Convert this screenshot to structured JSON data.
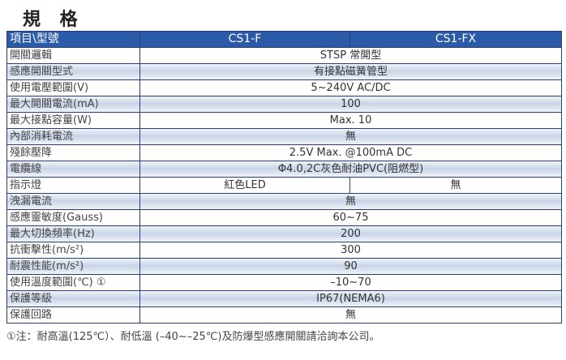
{
  "title": "規 格",
  "header": [
    "項目\\型號",
    "CS1-F",
    "CS1-FX"
  ],
  "rows": [
    {
      "label": "開關邏輯",
      "value": "STSP 常開型"
    },
    {
      "label": "感應開關型式",
      "value": "有接點磁簧管型"
    },
    {
      "label": "使用電壓範圍(V)",
      "value": "5~240V AC/DC"
    },
    {
      "label": "最大開關電流(mA)",
      "value": "100"
    },
    {
      "label": "最大接點容量(W)",
      "value": "Max. 10"
    },
    {
      "label": "內部消耗電流",
      "value": "無"
    },
    {
      "label": "殘餘壓降",
      "value": "2.5V Max. @100mA DC"
    },
    {
      "label": "電纜線",
      "value": "Φ4.0,2C灰色耐油PVC(阻燃型)"
    },
    {
      "label": "指示燈",
      "f": "紅色LED",
      "fx": "無"
    },
    {
      "label": "洩漏電流",
      "value": "無"
    },
    {
      "label": "感應靈敏度(Gauss)",
      "value": "60~75"
    },
    {
      "label": "最大切換頻率(Hz)",
      "value": "200"
    },
    {
      "label": "抗衝擊性(m/s²)",
      "value": "300"
    },
    {
      "label": "耐震性能(m/s²)",
      "value": "90"
    },
    {
      "label": "使用溫度範圍(℃) ①",
      "value": "–10~70"
    },
    {
      "label": "保護等級",
      "value": "IP67(NEMA6)"
    },
    {
      "label": "保護回路",
      "value": "無"
    }
  ],
  "footnote": "①注：耐高溫(125℃）、耐低溫 (–40~–25℃)及防爆型感應開關請洽詢本公司。",
  "colors": {
    "header": "#2a5aa8",
    "border": "#2a3d78",
    "shade": "#c8d4e8"
  }
}
